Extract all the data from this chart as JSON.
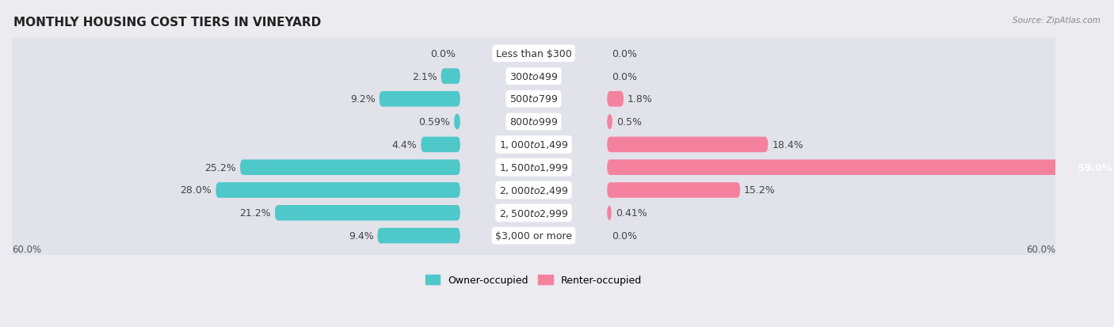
{
  "title": "MONTHLY HOUSING COST TIERS IN VINEYARD",
  "source": "Source: ZipAtlas.com",
  "categories": [
    "Less than $300",
    "$300 to $499",
    "$500 to $799",
    "$800 to $999",
    "$1,000 to $1,499",
    "$1,500 to $1,999",
    "$2,000 to $2,499",
    "$2,500 to $2,999",
    "$3,000 or more"
  ],
  "owner_values": [
    0.0,
    2.1,
    9.2,
    0.59,
    4.4,
    25.2,
    28.0,
    21.2,
    9.4
  ],
  "renter_values": [
    0.0,
    0.0,
    1.8,
    0.5,
    18.4,
    59.0,
    15.2,
    0.41,
    0.0
  ],
  "owner_color": "#4EC8C8",
  "renter_color": "#F4829E",
  "owner_label": "Owner-occupied",
  "renter_label": "Renter-occupied",
  "xlim": 60.0,
  "axis_label_left": "60.0%",
  "axis_label_right": "60.0%",
  "background_color": "#ebebf0",
  "row_color": "#e2e2ea",
  "title_fontsize": 11,
  "bar_height": 0.58,
  "label_fontsize": 9,
  "category_fontsize": 9
}
